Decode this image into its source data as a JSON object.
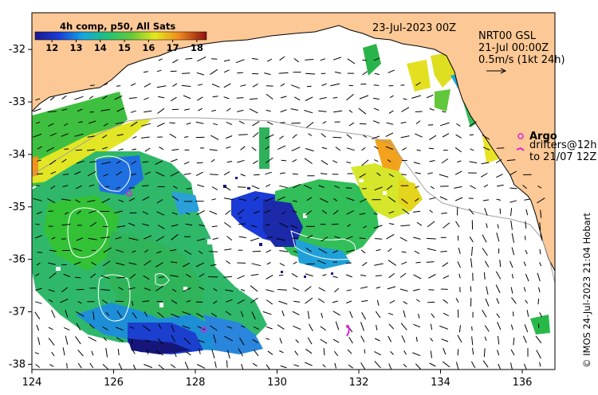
{
  "title": "23-Jul-2023 00Z",
  "colorbar": {
    "title": "4h comp, p50, All Sats",
    "ticks": [
      "12",
      "13",
      "14",
      "15",
      "16",
      "17",
      "18"
    ],
    "range": [
      11.3,
      18.4
    ]
  },
  "current_info": {
    "line1": "NRT00 GSL",
    "line2": "21-Jul 00:00Z",
    "line3": "0.5m/s (1kt 24h)"
  },
  "legend": {
    "argo_label": "Argo",
    "drifters_label": "drifters@12h",
    "drifters_label2": "to 21/07 12Z"
  },
  "axes": {
    "lon_ticks": [
      "124",
      "126",
      "128",
      "130",
      "132",
      "134",
      "136"
    ],
    "lat_ticks": [
      "-32",
      "-33",
      "-34",
      "-35",
      "-36",
      "-37",
      "-38"
    ],
    "lon_range": [
      124,
      136.8
    ],
    "lat_range": [
      -38.1,
      -31.3
    ]
  },
  "credit": "© IMOS 24-Jul-2023 21:04 Hobart",
  "colors": {
    "land": "#fcc895",
    "argo": "#e020e0",
    "coast": "#000000",
    "isobath": "#a0a0a0"
  }
}
